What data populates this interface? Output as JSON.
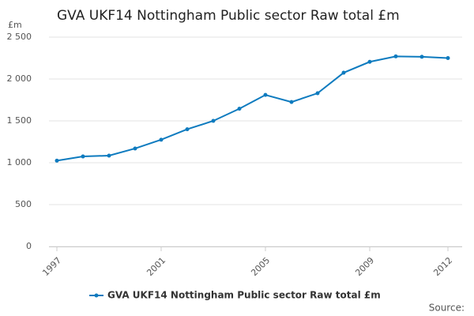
{
  "chart_data": {
    "type": "line",
    "title": "GVA UKF14 Nottingham Public sector Raw total £m",
    "y_unit_label": "£m",
    "source": "Source:",
    "x": [
      1997,
      1998,
      1999,
      2000,
      2001,
      2002,
      2003,
      2004,
      2005,
      2006,
      2007,
      2008,
      2009,
      2010,
      2011,
      2012
    ],
    "series": [
      {
        "name": "GVA UKF14 Nottingham Public sector Raw total £m",
        "color": "#0e7bbf",
        "values": [
          1025,
          1075,
          1085,
          1170,
          1275,
          1400,
          1500,
          1645,
          1810,
          1725,
          1830,
          2075,
          2205,
          2270,
          2265,
          2250
        ]
      }
    ],
    "xlim": [
      1997,
      2012
    ],
    "xticks": [
      1997,
      2001,
      2005,
      2009,
      2012
    ],
    "ylim": [
      0,
      2500
    ],
    "yticks": [
      0,
      500,
      {
        "value": 1000,
        "label": "1 000"
      },
      {
        "value": 1500,
        "label": "1 500"
      },
      {
        "value": 2000,
        "label": "2 000"
      },
      {
        "value": 2500,
        "label": "2 500"
      }
    ],
    "grid": true
  }
}
